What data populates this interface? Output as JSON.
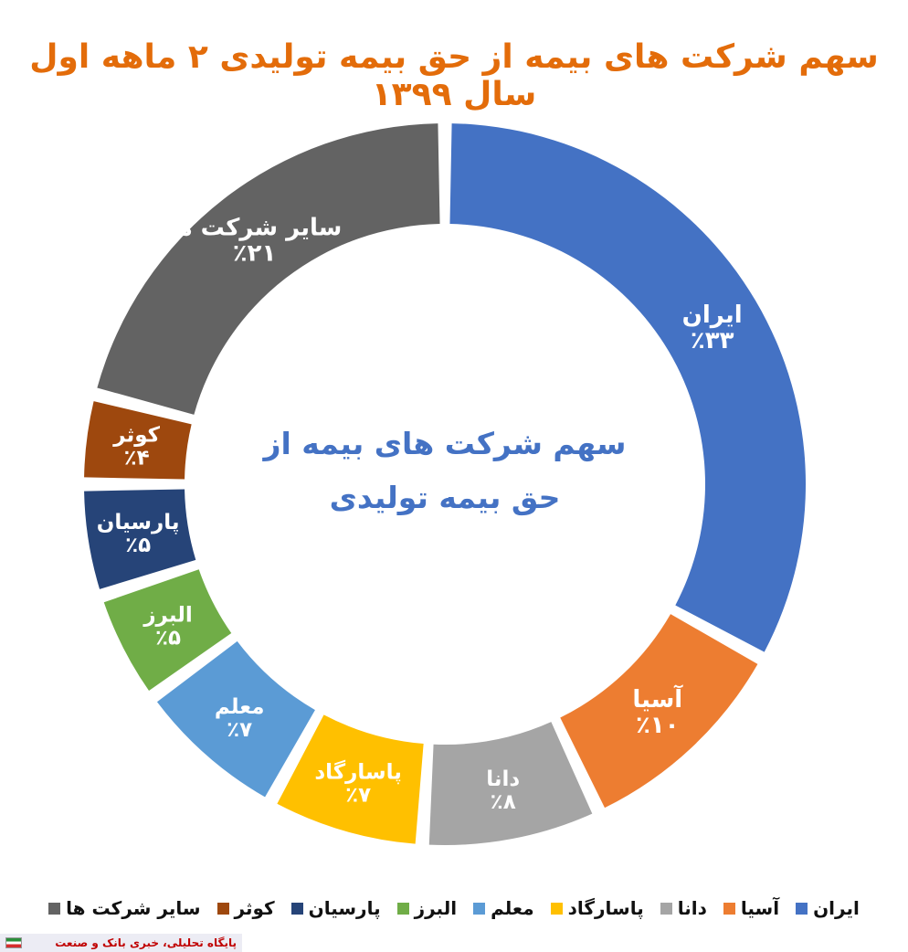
{
  "title": "سهم شرکت های بیمه از حق بیمه تولیدی ۲ ماهه اول سال ۱۳۹۹",
  "center_label": {
    "line1": "سهم شرکت های بیمه از",
    "line2": "حق بیمه تولیدی"
  },
  "chart_data": {
    "type": "pie",
    "title": "سهم شرکت های بیمه از حق بیمه تولیدی ۲ ماهه اول سال ۱۳۹۹",
    "legend_position": "bottom",
    "slices": [
      {
        "name": "ایران",
        "value": 33,
        "label": "٪۳۳",
        "color": "#4472C4"
      },
      {
        "name": "آسیا",
        "value": 10,
        "label": "٪۱۰",
        "color": "#ED7D31"
      },
      {
        "name": "دانا",
        "value": 8,
        "label": "٪۸",
        "color": "#A5A5A5"
      },
      {
        "name": "پاسارگاد",
        "value": 7,
        "label": "٪۷",
        "color": "#FFC000"
      },
      {
        "name": "معلم",
        "value": 7,
        "label": "٪۷",
        "color": "#5B9BD5"
      },
      {
        "name": "البرز",
        "value": 5,
        "label": "٪۵",
        "color": "#70AD47"
      },
      {
        "name": "پارسیان",
        "value": 5,
        "label": "٪۵",
        "color": "#264478"
      },
      {
        "name": "کوثر",
        "value": 4,
        "label": "٪۴",
        "color": "#9E480E"
      },
      {
        "name": "سایر شرکت ها",
        "value": 21,
        "label": "٪۲۱",
        "color": "#636363"
      }
    ]
  },
  "footer": {
    "text": "پایگاه تحلیلی، خبری بانک و صنعت"
  }
}
